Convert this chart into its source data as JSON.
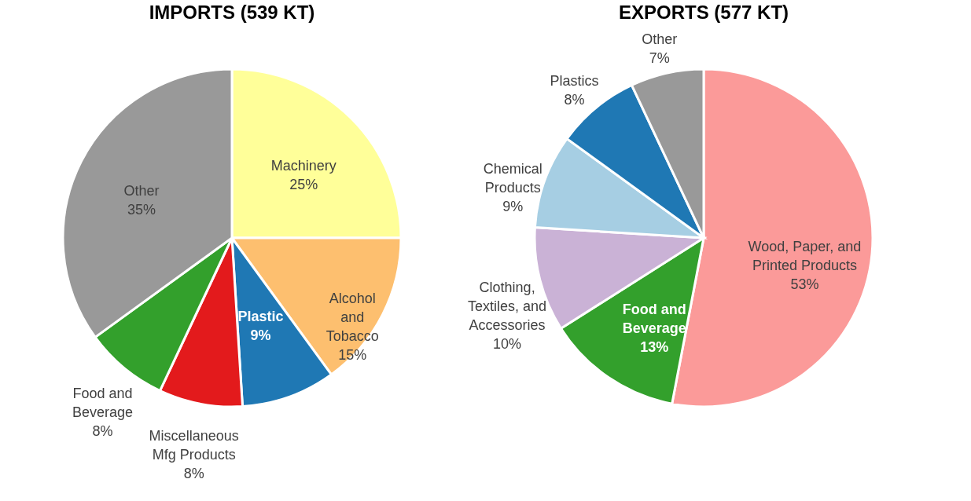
{
  "chart_data": [
    {
      "type": "pie",
      "title": "IMPORTS (539 KT)",
      "categories": [
        "Machinery",
        "Alcohol and Tobacco",
        "Plastic",
        "Miscellaneous Mfg Products",
        "Food and Beverage",
        "Other"
      ],
      "values": [
        25,
        15,
        9,
        8,
        8,
        35
      ],
      "value_labels": [
        "25%",
        "15%",
        "9%",
        "8%",
        "8%",
        "35%"
      ],
      "colors": [
        "#ffff99",
        "#fdbf6f",
        "#1f78b4",
        "#e31a1c",
        "#33a02c",
        "#999999"
      ],
      "legend": false
    },
    {
      "type": "pie",
      "title": "EXPORTS  (577 KT)",
      "categories": [
        "Wood, Paper, and Printed Products",
        "Food and Beverage",
        "Clothing, Textiles, and Accessories",
        "Chemical Products",
        "Plastics",
        "Other"
      ],
      "values": [
        53,
        13,
        10,
        9,
        8,
        7
      ],
      "value_labels": [
        "53%",
        "13%",
        "10%",
        "9%",
        "8%",
        "7%"
      ],
      "colors": [
        "#fb9a99",
        "#33a02c",
        "#cab2d6",
        "#a6cee3",
        "#1f78b4",
        "#999999"
      ],
      "legend": false
    }
  ]
}
